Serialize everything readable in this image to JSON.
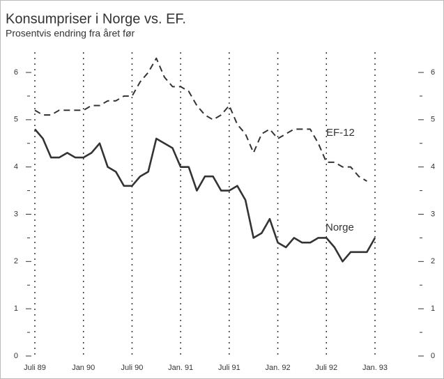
{
  "chart_data": {
    "type": "line",
    "title": "Konsumpriser i Norge vs. EF.",
    "subtitle": "Prosentvis endring fra året før",
    "categories": [
      "Juli 89",
      null,
      null,
      null,
      null,
      null,
      "Jan 90",
      null,
      null,
      null,
      null,
      null,
      "Juli 90",
      null,
      null,
      null,
      null,
      null,
      "Jan. 91",
      null,
      null,
      null,
      null,
      null,
      "Juli 91",
      null,
      null,
      null,
      null,
      null,
      "Jan. 92",
      null,
      null,
      null,
      null,
      null,
      "Juli 92",
      null,
      null,
      null,
      null,
      null,
      "Jan. 93"
    ],
    "series": [
      {
        "name": "EF-12",
        "color": "#333333",
        "dash": true,
        "values": [
          5.2,
          5.1,
          5.1,
          5.2,
          5.2,
          5.2,
          5.2,
          5.3,
          5.3,
          5.4,
          5.4,
          5.5,
          5.5,
          5.8,
          6.0,
          6.3,
          5.9,
          5.7,
          5.7,
          5.6,
          5.3,
          5.1,
          5.0,
          5.1,
          5.3,
          4.9,
          4.7,
          4.3,
          4.7,
          4.8,
          4.6,
          4.7,
          4.8,
          4.8,
          4.8,
          4.5,
          4.1,
          4.1,
          4.0,
          4.0,
          3.8,
          3.7,
          null
        ]
      },
      {
        "name": "Norge",
        "color": "#333333",
        "dash": false,
        "values": [
          4.8,
          4.6,
          4.2,
          4.2,
          4.3,
          4.2,
          4.2,
          4.3,
          4.5,
          4.0,
          3.9,
          3.6,
          3.6,
          3.8,
          3.9,
          4.6,
          4.5,
          4.4,
          4.0,
          4.0,
          3.5,
          3.8,
          3.8,
          3.5,
          3.5,
          3.6,
          3.3,
          2.5,
          2.6,
          2.9,
          2.4,
          2.3,
          2.5,
          2.4,
          2.4,
          2.5,
          2.5,
          2.3,
          2.0,
          2.2,
          2.2,
          2.2,
          2.5
        ]
      }
    ],
    "ylim": [
      0,
      6
    ],
    "yticks": [
      0,
      1,
      2,
      3,
      4,
      5,
      6
    ],
    "minor_yticks": [
      0.5,
      1.5,
      2.5,
      3.5,
      4.5,
      5.5
    ],
    "grid": true
  }
}
